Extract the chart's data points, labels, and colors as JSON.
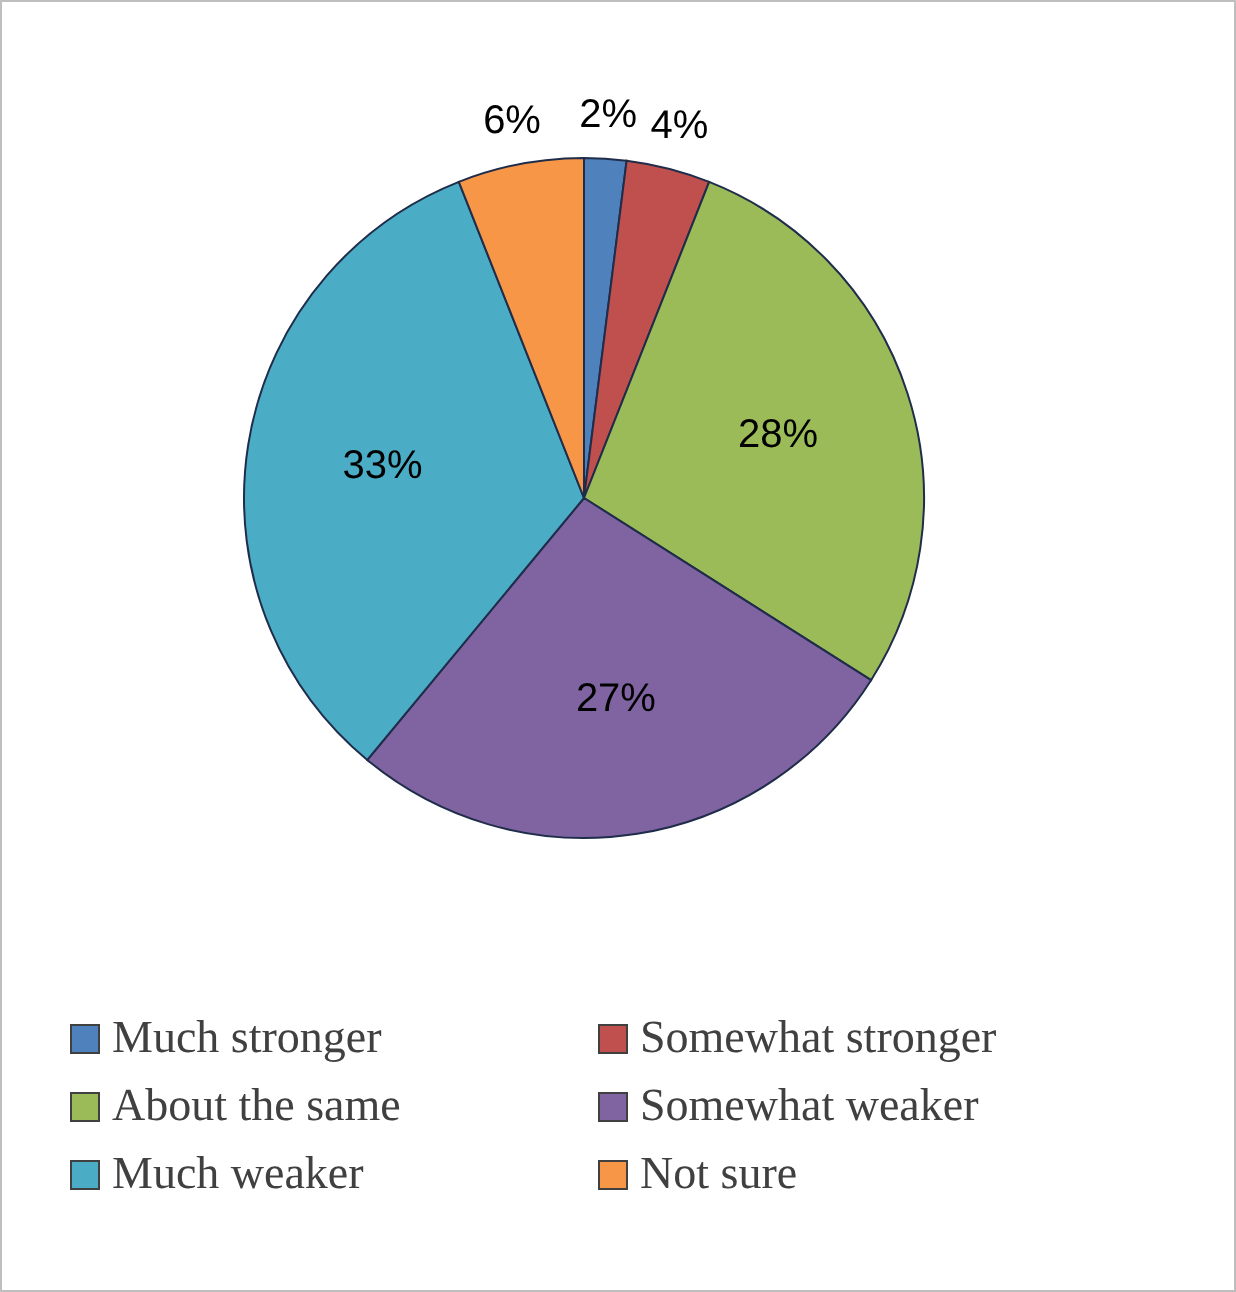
{
  "chart_data": {
    "type": "pie",
    "categories": [
      "Much stronger",
      "Somewhat stronger",
      "About the same",
      "Somewhat weaker",
      "Much weaker",
      "Not sure"
    ],
    "values": [
      2,
      4,
      28,
      27,
      33,
      6
    ],
    "colors": [
      "#4f81bd",
      "#c0504d",
      "#9bbb59",
      "#8064a2",
      "#4bacc6",
      "#f79646"
    ],
    "value_labels": [
      "2%",
      "4%",
      "28%",
      "27%",
      "33%",
      "6%"
    ],
    "legend": "bottom"
  }
}
